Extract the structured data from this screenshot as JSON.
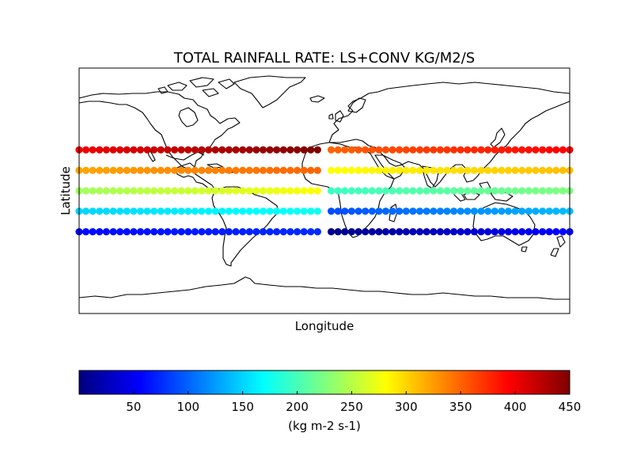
{
  "figure": {
    "title": "TOTAL RAINFALL RATE: LS+CONV KG/M2/S",
    "xlabel": "Longitude",
    "ylabel": "Latitude",
    "colorbar_label": "(kg m-2 s-1)"
  },
  "colors": {
    "jet": [
      "#00007f",
      "#0000ff",
      "#007fff",
      "#00ffff",
      "#7fff7f",
      "#ffff00",
      "#ff7f00",
      "#ff0000",
      "#7f0000"
    ],
    "coastline": "#000000",
    "background": "#ffffff"
  },
  "chart_data": {
    "type": "scatter",
    "title": "TOTAL RAINFALL RATE: LS+CONV KG/M2/S",
    "xlabel": "Longitude",
    "ylabel": "Latitude",
    "xlim": [
      -180,
      180
    ],
    "ylim": [
      -90,
      90
    ],
    "colorbar": {
      "label": "(kg m-2 s-1)",
      "range": [
        0,
        450
      ],
      "ticks": [
        50,
        100,
        150,
        200,
        250,
        300,
        350,
        400,
        450
      ],
      "colormap": "jet"
    },
    "rows": [
      {
        "lat": 30,
        "segments": [
          {
            "lon_start": -180,
            "lon_end": -5,
            "value_start": 400,
            "value_end": 450
          },
          {
            "lon_start": 5,
            "lon_end": 180,
            "value_start": 350,
            "value_end": 395
          }
        ]
      },
      {
        "lat": 15,
        "segments": [
          {
            "lon_start": -180,
            "lon_end": -5,
            "value_start": 320,
            "value_end": 350
          },
          {
            "lon_start": 5,
            "lon_end": 180,
            "value_start": 280,
            "value_end": 310
          }
        ]
      },
      {
        "lat": 0,
        "segments": [
          {
            "lon_start": -180,
            "lon_end": -5,
            "value_start": 240,
            "value_end": 280
          },
          {
            "lon_start": 5,
            "lon_end": 180,
            "value_start": 195,
            "value_end": 225
          }
        ]
      },
      {
        "lat": -15,
        "segments": [
          {
            "lon_start": -180,
            "lon_end": -5,
            "value_start": 150,
            "value_end": 175
          },
          {
            "lon_start": 5,
            "lon_end": 180,
            "value_start": 90,
            "value_end": 140
          }
        ]
      },
      {
        "lat": -30,
        "segments": [
          {
            "lon_start": -180,
            "lon_end": -5,
            "value_start": 60,
            "value_end": 75
          },
          {
            "lon_start": 5,
            "lon_end": 180,
            "value_start": 5,
            "value_end": 60
          }
        ]
      }
    ]
  }
}
